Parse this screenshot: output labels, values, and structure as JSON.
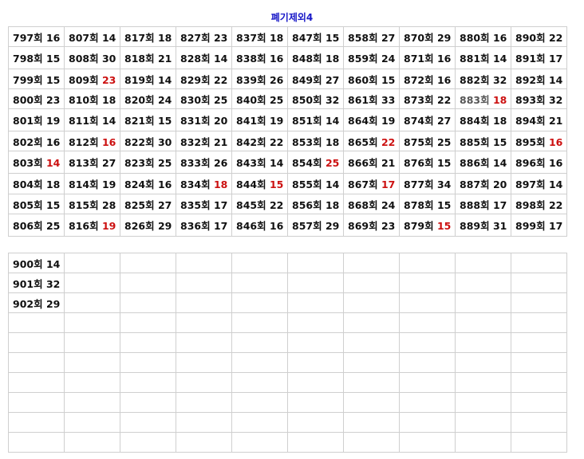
{
  "title": "폐기제외4",
  "colors": {
    "title": "#1a1ac8",
    "highlight": "#cc1111",
    "border": "#cfcfcf"
  },
  "table1": {
    "rows": [
      [
        [
          "797회",
          "16"
        ],
        [
          "807회",
          "14"
        ],
        [
          "817회",
          "18"
        ],
        [
          "827회",
          "23"
        ],
        [
          "837회",
          "18"
        ],
        [
          "847회",
          "15"
        ],
        [
          "858회",
          "27"
        ],
        [
          "870회",
          "29"
        ],
        [
          "880회",
          "16"
        ],
        [
          "890회",
          "22"
        ]
      ],
      [
        [
          "798회",
          "15"
        ],
        [
          "808회",
          "30"
        ],
        [
          "818회",
          "21"
        ],
        [
          "828회",
          "14"
        ],
        [
          "838회",
          "16"
        ],
        [
          "848회",
          "18"
        ],
        [
          "859회",
          "24"
        ],
        [
          "871회",
          "16"
        ],
        [
          "881회",
          "14"
        ],
        [
          "891회",
          "17"
        ]
      ],
      [
        [
          "799회",
          "15"
        ],
        [
          "809회",
          "23",
          true
        ],
        [
          "819회",
          "14"
        ],
        [
          "829회",
          "22"
        ],
        [
          "839회",
          "26"
        ],
        [
          "849회",
          "27"
        ],
        [
          "860회",
          "15"
        ],
        [
          "872회",
          "16"
        ],
        [
          "882회",
          "32"
        ],
        [
          "892회",
          "14"
        ]
      ],
      [
        [
          "800회",
          "23"
        ],
        [
          "810회",
          "18"
        ],
        [
          "820회",
          "24"
        ],
        [
          "830회",
          "25"
        ],
        [
          "840회",
          "25"
        ],
        [
          "850회",
          "32"
        ],
        [
          "861회",
          "33"
        ],
        [
          "873회",
          "22"
        ],
        [
          "883회",
          "18",
          true,
          true
        ],
        [
          "893회",
          "32"
        ]
      ],
      [
        [
          "801회",
          "19"
        ],
        [
          "811회",
          "14"
        ],
        [
          "821회",
          "15"
        ],
        [
          "831회",
          "20"
        ],
        [
          "841회",
          "19"
        ],
        [
          "851회",
          "14"
        ],
        [
          "864회",
          "19"
        ],
        [
          "874회",
          "27"
        ],
        [
          "884회",
          "18"
        ],
        [
          "894회",
          "21"
        ]
      ],
      [
        [
          "802회",
          "16"
        ],
        [
          "812회",
          "16",
          true
        ],
        [
          "822회",
          "30"
        ],
        [
          "832회",
          "21"
        ],
        [
          "842회",
          "22"
        ],
        [
          "853회",
          "18"
        ],
        [
          "865회",
          "22",
          true
        ],
        [
          "875회",
          "25"
        ],
        [
          "885회",
          "15"
        ],
        [
          "895회",
          "16",
          true
        ]
      ],
      [
        [
          "803회",
          "14",
          true
        ],
        [
          "813회",
          "27"
        ],
        [
          "823회",
          "25"
        ],
        [
          "833회",
          "26"
        ],
        [
          "843회",
          "14"
        ],
        [
          "854회",
          "25",
          true
        ],
        [
          "866회",
          "21"
        ],
        [
          "876회",
          "15"
        ],
        [
          "886회",
          "14"
        ],
        [
          "896회",
          "16"
        ]
      ],
      [
        [
          "804회",
          "18"
        ],
        [
          "814회",
          "19"
        ],
        [
          "824회",
          "16"
        ],
        [
          "834회",
          "18",
          true
        ],
        [
          "844회",
          "15",
          true
        ],
        [
          "855회",
          "14"
        ],
        [
          "867회",
          "17",
          true
        ],
        [
          "877회",
          "34"
        ],
        [
          "887회",
          "20"
        ],
        [
          "897회",
          "14"
        ]
      ],
      [
        [
          "805회",
          "15"
        ],
        [
          "815회",
          "28"
        ],
        [
          "825회",
          "27"
        ],
        [
          "835회",
          "17"
        ],
        [
          "845회",
          "22"
        ],
        [
          "856회",
          "18"
        ],
        [
          "868회",
          "24"
        ],
        [
          "878회",
          "15"
        ],
        [
          "888회",
          "17"
        ],
        [
          "898회",
          "22"
        ]
      ],
      [
        [
          "806회",
          "25"
        ],
        [
          "816회",
          "19",
          true
        ],
        [
          "826회",
          "29"
        ],
        [
          "836회",
          "17"
        ],
        [
          "846회",
          "16"
        ],
        [
          "857회",
          "29"
        ],
        [
          "869회",
          "23"
        ],
        [
          "879회",
          "15",
          true
        ],
        [
          "889회",
          "31"
        ],
        [
          "899회",
          "17"
        ]
      ]
    ]
  },
  "table2": {
    "rows": [
      [
        [
          "900회",
          "14"
        ]
      ],
      [
        [
          "901회",
          "32"
        ]
      ],
      [
        [
          "902회",
          "29"
        ]
      ],
      [],
      [],
      [],
      [],
      [],
      [],
      []
    ]
  }
}
